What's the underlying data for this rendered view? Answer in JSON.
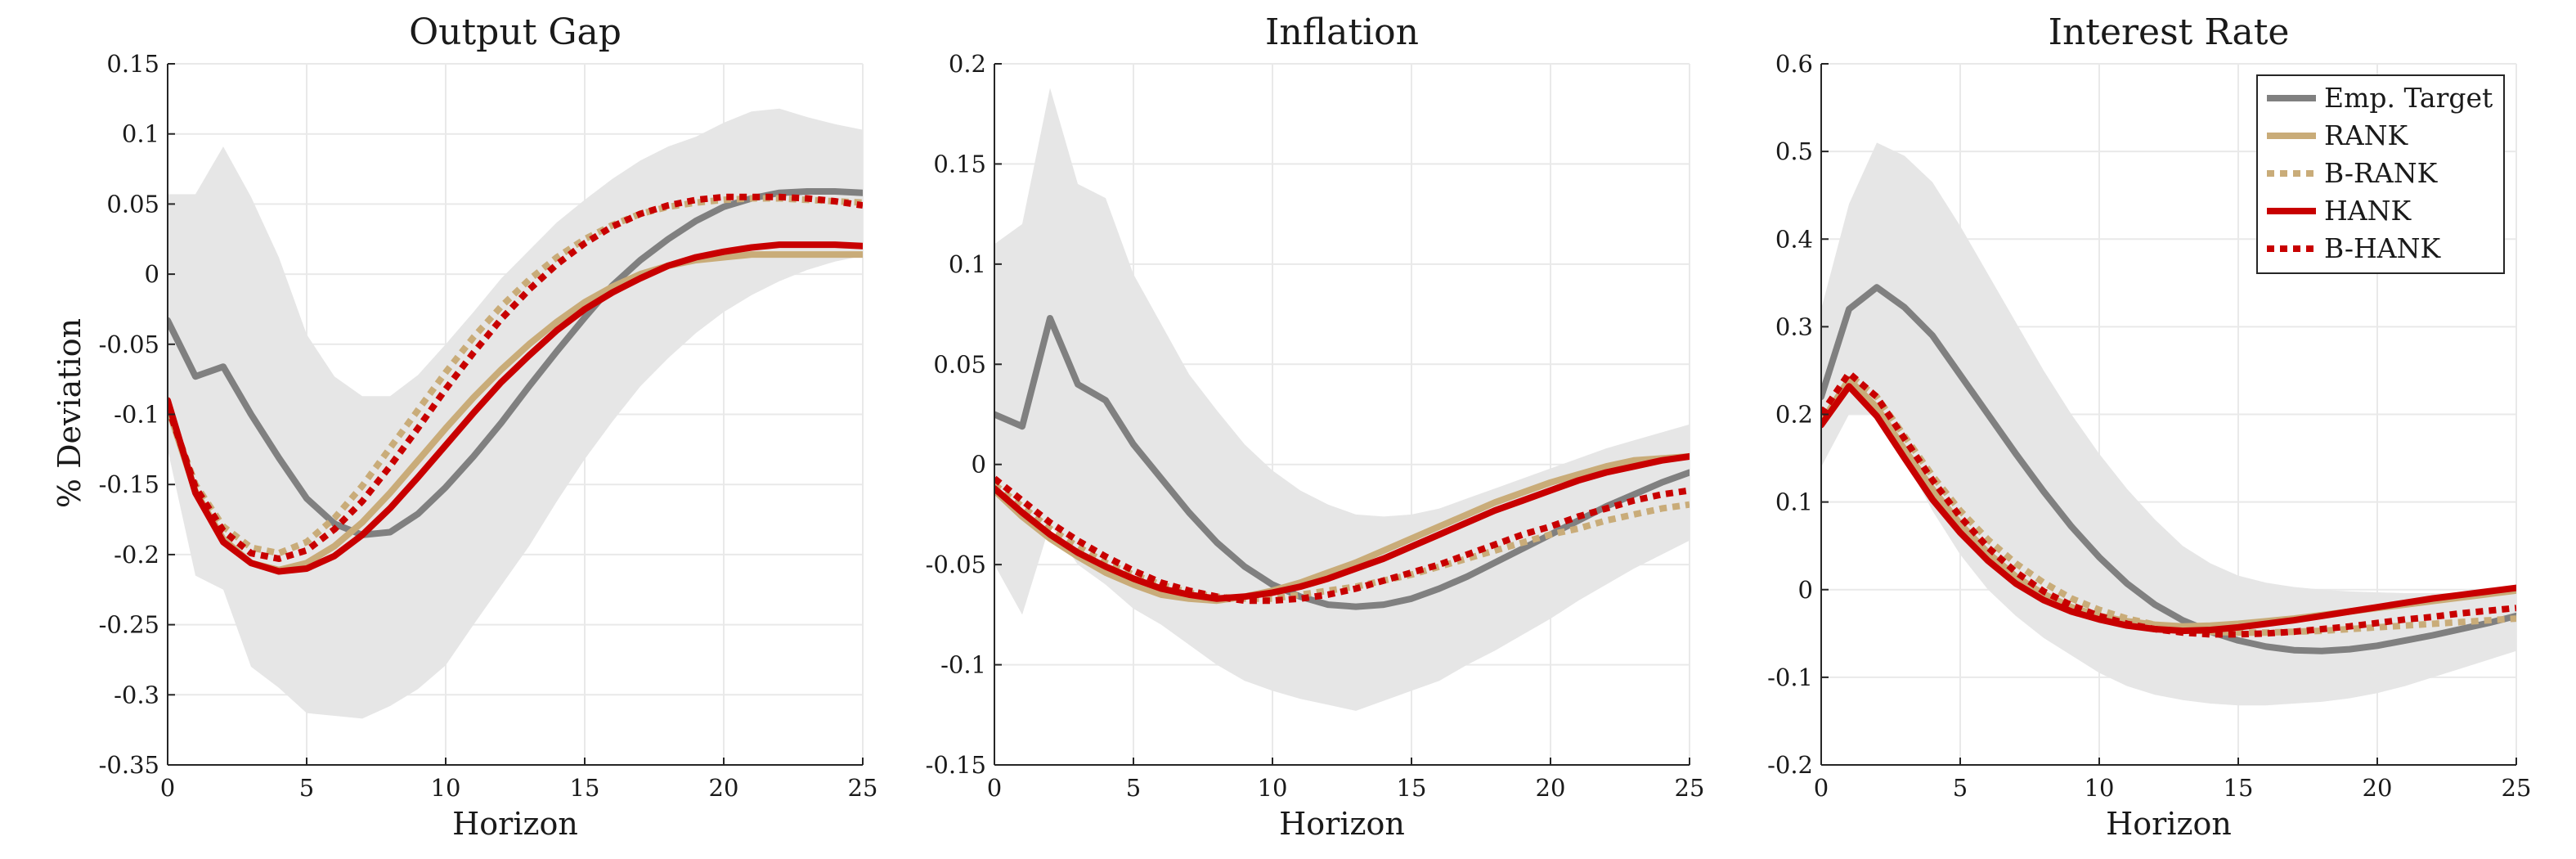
{
  "figure": {
    "colors": {
      "band": "#e6e6e6",
      "grid": "#e9e9e9",
      "axis": "#262626",
      "emp": "#808080",
      "rank": "#c9ac79",
      "brank": "#c9ac79",
      "hank": "#c80000",
      "bhank": "#c80000"
    }
  },
  "legend": {
    "items": [
      {
        "key": "emp",
        "label": "Emp. Target"
      },
      {
        "key": "rank",
        "label": "RANK"
      },
      {
        "key": "brank",
        "label": "B-RANK"
      },
      {
        "key": "hank",
        "label": "HANK"
      },
      {
        "key": "bhank",
        "label": "B-HANK"
      }
    ]
  },
  "chart_data": [
    {
      "type": "line",
      "title": "Output Gap",
      "xlabel": "Horizon",
      "ylabel": "% Deviation",
      "xlim": [
        0,
        25
      ],
      "ylim": [
        -0.35,
        0.15
      ],
      "xticks": [
        0,
        5,
        10,
        15,
        20,
        25
      ],
      "xtick_labels": [
        "0",
        "5",
        "10",
        "15",
        "20",
        "25"
      ],
      "yticks": [
        -0.35,
        -0.3,
        -0.25,
        -0.2,
        -0.15,
        -0.1,
        -0.05,
        0,
        0.05,
        0.1,
        0.15
      ],
      "ytick_labels": [
        "-0.35",
        "-0.3",
        "-0.25",
        "-0.2",
        "-0.15",
        "-0.1",
        "-0.05",
        "0",
        "0.05",
        "0.1",
        "0.15"
      ],
      "grid": true,
      "x": [
        0,
        1,
        2,
        3,
        4,
        5,
        6,
        7,
        8,
        9,
        10,
        11,
        12,
        13,
        14,
        15,
        16,
        17,
        18,
        19,
        20,
        21,
        22,
        23,
        24,
        25
      ],
      "band": {
        "upper": [
          0.057,
          0.057,
          0.091,
          0.055,
          0.012,
          -0.043,
          -0.073,
          -0.087,
          -0.087,
          -0.072,
          -0.05,
          -0.027,
          -0.003,
          0.017,
          0.037,
          0.053,
          0.068,
          0.081,
          0.091,
          0.098,
          0.108,
          0.116,
          0.118,
          0.112,
          0.107,
          0.103
        ],
        "lower": [
          -0.125,
          -0.215,
          -0.225,
          -0.28,
          -0.295,
          -0.313,
          -0.315,
          -0.317,
          -0.308,
          -0.296,
          -0.279,
          -0.25,
          -0.222,
          -0.194,
          -0.162,
          -0.132,
          -0.105,
          -0.08,
          -0.06,
          -0.042,
          -0.027,
          -0.015,
          -0.005,
          0.003,
          0.009,
          0.013
        ]
      },
      "series": [
        {
          "key": "emp",
          "name": "Emp. Target",
          "values": [
            -0.033,
            -0.073,
            -0.066,
            -0.1,
            -0.131,
            -0.16,
            -0.178,
            -0.186,
            -0.184,
            -0.171,
            -0.152,
            -0.13,
            -0.106,
            -0.08,
            -0.055,
            -0.031,
            -0.008,
            0.01,
            0.025,
            0.038,
            0.048,
            0.054,
            0.058,
            0.059,
            0.059,
            0.058
          ]
        },
        {
          "key": "rank",
          "name": "RANK",
          "values": [
            -0.095,
            -0.155,
            -0.189,
            -0.206,
            -0.211,
            -0.206,
            -0.194,
            -0.177,
            -0.156,
            -0.133,
            -0.11,
            -0.088,
            -0.068,
            -0.05,
            -0.034,
            -0.02,
            -0.009,
            0.0,
            0.006,
            0.01,
            0.012,
            0.014,
            0.014,
            0.014,
            0.014,
            0.014
          ]
        },
        {
          "key": "brank",
          "name": "B-RANK",
          "values": [
            -0.095,
            -0.15,
            -0.18,
            -0.195,
            -0.199,
            -0.191,
            -0.174,
            -0.151,
            -0.124,
            -0.097,
            -0.07,
            -0.045,
            -0.023,
            -0.004,
            0.012,
            0.025,
            0.035,
            0.043,
            0.048,
            0.051,
            0.053,
            0.054,
            0.054,
            0.053,
            0.052,
            0.051
          ]
        },
        {
          "key": "hank",
          "name": "HANK",
          "values": [
            -0.09,
            -0.156,
            -0.191,
            -0.206,
            -0.212,
            -0.21,
            -0.201,
            -0.186,
            -0.167,
            -0.145,
            -0.122,
            -0.099,
            -0.077,
            -0.058,
            -0.04,
            -0.025,
            -0.013,
            -0.003,
            0.006,
            0.012,
            0.016,
            0.019,
            0.021,
            0.021,
            0.021,
            0.02
          ]
        },
        {
          "key": "bhank",
          "name": "B-HANK",
          "values": [
            -0.094,
            -0.152,
            -0.183,
            -0.199,
            -0.203,
            -0.197,
            -0.182,
            -0.162,
            -0.137,
            -0.11,
            -0.082,
            -0.056,
            -0.032,
            -0.011,
            0.007,
            0.022,
            0.034,
            0.043,
            0.049,
            0.053,
            0.055,
            0.055,
            0.055,
            0.054,
            0.052,
            0.049
          ]
        }
      ]
    },
    {
      "type": "line",
      "title": "Inflation",
      "xlabel": "Horizon",
      "ylabel": "",
      "xlim": [
        0,
        25
      ],
      "ylim": [
        -0.15,
        0.2
      ],
      "xticks": [
        0,
        5,
        10,
        15,
        20,
        25
      ],
      "xtick_labels": [
        "0",
        "5",
        "10",
        "15",
        "20",
        "25"
      ],
      "yticks": [
        -0.15,
        -0.1,
        -0.05,
        0,
        0.05,
        0.1,
        0.15,
        0.2
      ],
      "ytick_labels": [
        "-0.15",
        "-0.1",
        "-0.05",
        "0",
        "0.05",
        "0.1",
        "0.15",
        "0.2"
      ],
      "grid": true,
      "x": [
        0,
        1,
        2,
        3,
        4,
        5,
        6,
        7,
        8,
        9,
        10,
        11,
        12,
        13,
        14,
        15,
        16,
        17,
        18,
        19,
        20,
        21,
        22,
        23,
        24,
        25
      ],
      "band": {
        "upper": [
          0.11,
          0.12,
          0.188,
          0.14,
          0.133,
          0.095,
          0.07,
          0.045,
          0.027,
          0.01,
          -0.003,
          -0.013,
          -0.02,
          -0.025,
          -0.026,
          -0.025,
          -0.022,
          -0.017,
          -0.012,
          -0.007,
          -0.002,
          0.003,
          0.008,
          0.012,
          0.016,
          0.02
        ],
        "lower": [
          -0.05,
          -0.075,
          -0.03,
          -0.05,
          -0.06,
          -0.072,
          -0.08,
          -0.09,
          -0.1,
          -0.108,
          -0.113,
          -0.117,
          -0.12,
          -0.123,
          -0.118,
          -0.113,
          -0.108,
          -0.1,
          -0.093,
          -0.085,
          -0.077,
          -0.068,
          -0.06,
          -0.052,
          -0.045,
          -0.038
        ]
      },
      "series": [
        {
          "key": "emp",
          "name": "Emp. Target",
          "values": [
            0.025,
            0.019,
            0.073,
            0.04,
            0.032,
            0.01,
            -0.007,
            -0.024,
            -0.039,
            -0.051,
            -0.06,
            -0.066,
            -0.07,
            -0.071,
            -0.07,
            -0.067,
            -0.062,
            -0.056,
            -0.049,
            -0.042,
            -0.035,
            -0.028,
            -0.021,
            -0.015,
            -0.009,
            -0.004
          ]
        },
        {
          "key": "rank",
          "name": "RANK",
          "values": [
            -0.013,
            -0.026,
            -0.037,
            -0.046,
            -0.054,
            -0.06,
            -0.065,
            -0.067,
            -0.068,
            -0.066,
            -0.063,
            -0.059,
            -0.054,
            -0.049,
            -0.043,
            -0.037,
            -0.031,
            -0.025,
            -0.019,
            -0.014,
            -0.009,
            -0.005,
            -0.001,
            0.002,
            0.003,
            0.004
          ]
        },
        {
          "key": "brank",
          "name": "B-RANK",
          "values": [
            -0.01,
            -0.021,
            -0.032,
            -0.041,
            -0.049,
            -0.055,
            -0.06,
            -0.064,
            -0.066,
            -0.067,
            -0.067,
            -0.065,
            -0.063,
            -0.061,
            -0.058,
            -0.055,
            -0.051,
            -0.047,
            -0.043,
            -0.039,
            -0.035,
            -0.032,
            -0.028,
            -0.025,
            -0.022,
            -0.02
          ]
        },
        {
          "key": "hank",
          "name": "HANK",
          "values": [
            -0.012,
            -0.024,
            -0.035,
            -0.044,
            -0.051,
            -0.057,
            -0.062,
            -0.065,
            -0.067,
            -0.066,
            -0.064,
            -0.061,
            -0.057,
            -0.052,
            -0.047,
            -0.041,
            -0.035,
            -0.029,
            -0.023,
            -0.018,
            -0.013,
            -0.008,
            -0.004,
            -0.001,
            0.002,
            0.004
          ]
        },
        {
          "key": "bhank",
          "name": "B-HANK",
          "values": [
            -0.007,
            -0.018,
            -0.029,
            -0.038,
            -0.046,
            -0.053,
            -0.059,
            -0.063,
            -0.066,
            -0.068,
            -0.068,
            -0.067,
            -0.065,
            -0.062,
            -0.058,
            -0.054,
            -0.05,
            -0.045,
            -0.04,
            -0.035,
            -0.031,
            -0.026,
            -0.022,
            -0.018,
            -0.015,
            -0.013
          ]
        }
      ]
    },
    {
      "type": "line",
      "title": "Interest Rate",
      "xlabel": "Horizon",
      "ylabel": "",
      "xlim": [
        0,
        25
      ],
      "ylim": [
        -0.2,
        0.6
      ],
      "xticks": [
        0,
        5,
        10,
        15,
        20,
        25
      ],
      "xtick_labels": [
        "0",
        "5",
        "10",
        "15",
        "20",
        "25"
      ],
      "yticks": [
        -0.2,
        -0.1,
        0,
        0.1,
        0.2,
        0.3,
        0.4,
        0.5,
        0.6
      ],
      "ytick_labels": [
        "-0.2",
        "-0.1",
        "0",
        "0.1",
        "0.2",
        "0.3",
        "0.4",
        "0.5",
        "0.6"
      ],
      "grid": true,
      "legend_position": "top-right",
      "x": [
        0,
        1,
        2,
        3,
        4,
        5,
        6,
        7,
        8,
        9,
        10,
        11,
        12,
        13,
        14,
        15,
        16,
        17,
        18,
        19,
        20,
        21,
        22,
        23,
        24,
        25
      ],
      "band": {
        "upper": [
          0.32,
          0.44,
          0.51,
          0.495,
          0.465,
          0.415,
          0.36,
          0.305,
          0.25,
          0.2,
          0.155,
          0.115,
          0.08,
          0.05,
          0.03,
          0.016,
          0.008,
          0.003,
          0.0,
          -0.002,
          -0.003,
          -0.004,
          -0.004,
          -0.004,
          -0.004,
          -0.004
        ],
        "lower": [
          0.14,
          0.2,
          0.2,
          0.15,
          0.09,
          0.04,
          0.0,
          -0.03,
          -0.055,
          -0.075,
          -0.095,
          -0.11,
          -0.12,
          -0.126,
          -0.13,
          -0.132,
          -0.132,
          -0.13,
          -0.128,
          -0.124,
          -0.118,
          -0.11,
          -0.1,
          -0.09,
          -0.08,
          -0.07
        ]
      },
      "series": [
        {
          "key": "emp",
          "name": "Emp. Target",
          "values": [
            0.22,
            0.32,
            0.345,
            0.322,
            0.29,
            0.245,
            0.2,
            0.155,
            0.112,
            0.072,
            0.037,
            0.007,
            -0.017,
            -0.035,
            -0.048,
            -0.058,
            -0.065,
            -0.069,
            -0.07,
            -0.068,
            -0.064,
            -0.058,
            -0.052,
            -0.045,
            -0.038,
            -0.03
          ]
        },
        {
          "key": "rank",
          "name": "RANK",
          "values": [
            0.19,
            0.24,
            0.208,
            0.16,
            0.115,
            0.075,
            0.042,
            0.015,
            -0.005,
            -0.02,
            -0.03,
            -0.036,
            -0.04,
            -0.042,
            -0.041,
            -0.039,
            -0.036,
            -0.033,
            -0.029,
            -0.025,
            -0.021,
            -0.017,
            -0.013,
            -0.009,
            -0.005,
            -0.001
          ]
        },
        {
          "key": "brank",
          "name": "B-RANK",
          "values": [
            0.2,
            0.245,
            0.22,
            0.175,
            0.13,
            0.09,
            0.057,
            0.03,
            0.008,
            -0.01,
            -0.023,
            -0.033,
            -0.04,
            -0.045,
            -0.048,
            -0.049,
            -0.049,
            -0.048,
            -0.047,
            -0.045,
            -0.043,
            -0.041,
            -0.039,
            -0.037,
            -0.035,
            -0.033
          ]
        },
        {
          "key": "hank",
          "name": "HANK",
          "values": [
            0.188,
            0.232,
            0.198,
            0.15,
            0.103,
            0.065,
            0.033,
            0.007,
            -0.012,
            -0.025,
            -0.034,
            -0.041,
            -0.045,
            -0.047,
            -0.046,
            -0.043,
            -0.039,
            -0.035,
            -0.03,
            -0.025,
            -0.02,
            -0.015,
            -0.01,
            -0.006,
            -0.002,
            0.002
          ]
        },
        {
          "key": "bhank",
          "name": "B-HANK",
          "values": [
            0.2,
            0.247,
            0.22,
            0.172,
            0.125,
            0.083,
            0.048,
            0.02,
            -0.002,
            -0.018,
            -0.03,
            -0.039,
            -0.045,
            -0.049,
            -0.051,
            -0.051,
            -0.05,
            -0.048,
            -0.045,
            -0.042,
            -0.038,
            -0.034,
            -0.031,
            -0.027,
            -0.024,
            -0.021
          ]
        }
      ]
    }
  ]
}
